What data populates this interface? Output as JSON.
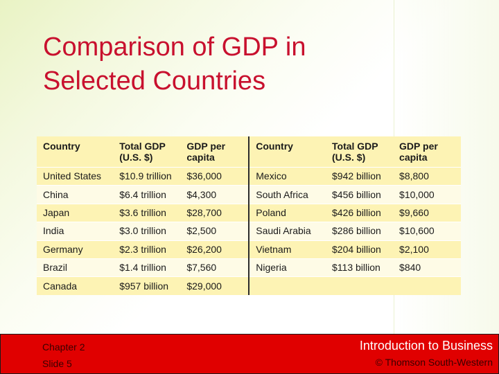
{
  "slide": {
    "title_line1": "Comparison of GDP in",
    "title_line2": "Selected Countries"
  },
  "table": {
    "headers": [
      "Country",
      "Total GDP\n(U.S. $)",
      "GDP per\ncapita",
      "Country",
      "Total GDP\n(U.S. $)",
      "GDP per\ncapita"
    ],
    "rows": [
      [
        "United States",
        "$10.9 trillion",
        "$36,000",
        "Mexico",
        "$942 billion",
        "$8,800"
      ],
      [
        "China",
        "$6.4 trillion",
        "$4,300",
        "South Africa",
        "$456 billion",
        "$10,000"
      ],
      [
        "Japan",
        "$3.6 trillion",
        "$28,700",
        "Poland",
        "$426 billion",
        "$9,660"
      ],
      [
        "India",
        "$3.0 trillion",
        "$2,500",
        "Saudi Arabia",
        "$286 billion",
        "$10,600"
      ],
      [
        "Germany",
        "$2.3 trillion",
        "$26,200",
        "Vietnam",
        "$204 billion",
        "$2,100"
      ],
      [
        "Brazil",
        "$1.4 trillion",
        "$7,560",
        "Nigeria",
        "$113 billion",
        "$840"
      ],
      [
        "Canada",
        "$957 billion",
        "$29,000",
        "",
        "",
        ""
      ]
    ]
  },
  "footer": {
    "chapter": "Chapter 2",
    "slide": "Slide 5",
    "course": "Introduction to Business",
    "copyright": "© Thomson South-Western"
  },
  "colors": {
    "title": "#c8102e",
    "footer_bg": "#e00000",
    "table_bg": "#fdf3b4"
  }
}
